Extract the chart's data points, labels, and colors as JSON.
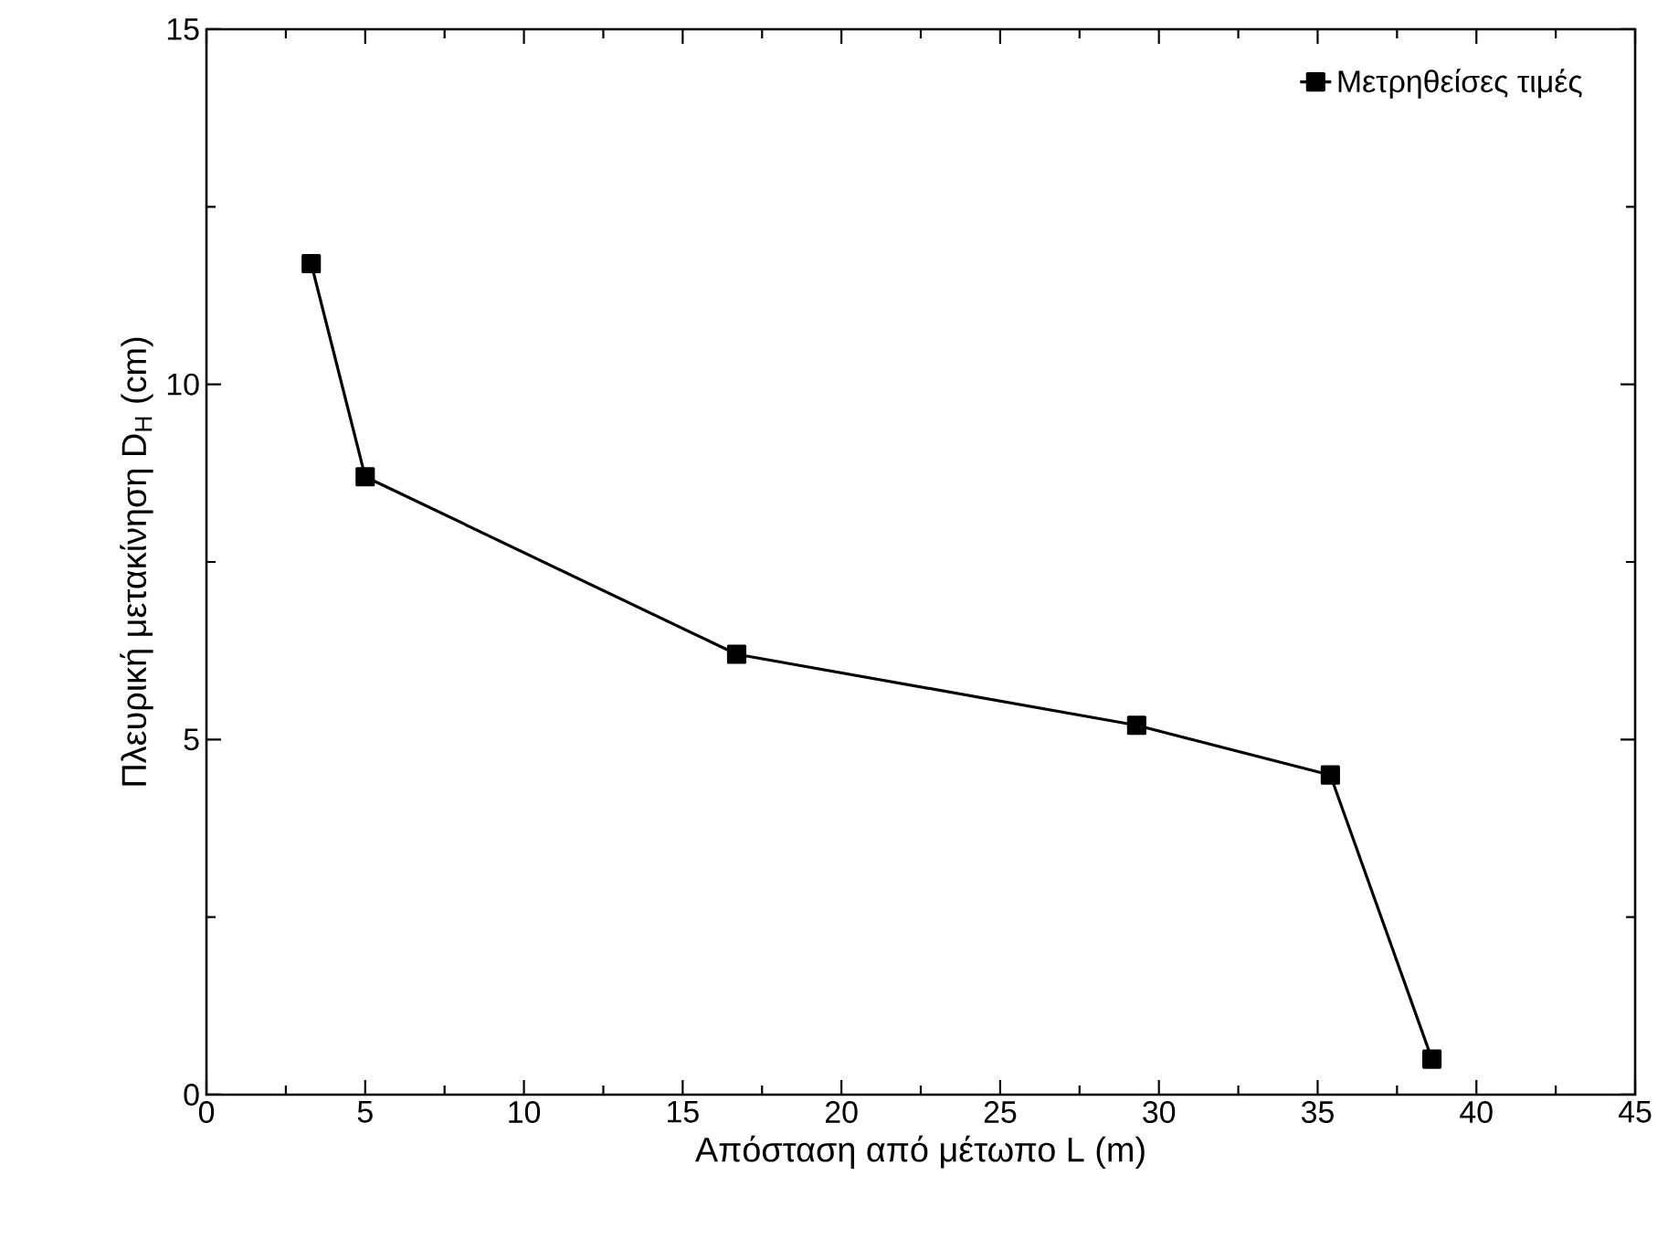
{
  "chart_data": {
    "type": "line",
    "xlabel": "Απόσταση από μέτωπο L (m)",
    "ylabel": "Πλευρική μετακίνηση D$_{H}$ (cm)",
    "x": [
      3.3,
      5.0,
      16.7,
      29.3,
      35.4,
      38.6
    ],
    "series": [
      {
        "name": "Μετρηθείσες τιμές",
        "color": "#000000",
        "values": [
          11.7,
          8.7,
          6.2,
          5.2,
          4.5,
          0.5
        ]
      }
    ],
    "xlim": [
      0,
      45
    ],
    "xticks": [
      0,
      5,
      10,
      15,
      20,
      25,
      30,
      35,
      40,
      45
    ],
    "ylim": [
      0,
      15
    ],
    "yticks": [
      0,
      5,
      10,
      15
    ],
    "grid": false,
    "legend": "top right",
    "marker": "square",
    "line_style": "solid"
  }
}
